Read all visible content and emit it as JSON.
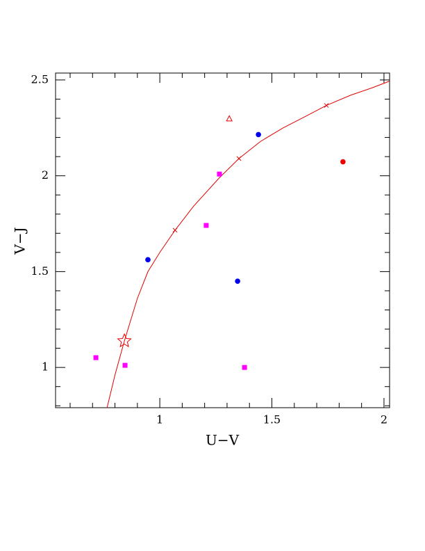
{
  "chart_data": {
    "type": "scatter",
    "x_label": "U−V",
    "y_label": "V−J",
    "xlim": [
      0.535,
      2.025
    ],
    "ylim": [
      0.79,
      2.536
    ],
    "xticks": [
      1,
      1.5,
      2
    ],
    "yticks": [
      1,
      1.5,
      2,
      2.5
    ],
    "xminorticks": [
      0.6,
      0.7,
      0.8,
      0.9,
      1.1,
      1.2,
      1.3,
      1.4,
      1.6,
      1.7,
      1.8,
      1.9
    ],
    "yminorticks": [
      0.8,
      0.9,
      1.1,
      1.2,
      1.3,
      1.4,
      1.6,
      1.7,
      1.8,
      1.9,
      2.1,
      2.2,
      2.3,
      2.4
    ],
    "series": [
      {
        "marker": "line",
        "color": "#e00000",
        "x": [
          0.765,
          0.8,
          0.842,
          0.9,
          0.947,
          1.0,
          1.068,
          1.15,
          1.266,
          1.353,
          1.45,
          1.55,
          1.65,
          1.743,
          1.85,
          1.95,
          2.025
        ],
        "values": [
          0.79,
          0.96,
          1.138,
          1.36,
          1.5,
          1.6,
          1.716,
          1.84,
          1.99,
          2.09,
          2.18,
          2.25,
          2.31,
          2.367,
          2.42,
          2.46,
          2.494
        ]
      },
      {
        "marker": "cross",
        "color": "#e00000",
        "x": [
          1.068,
          1.353,
          1.743
        ],
        "values": [
          1.716,
          2.09,
          2.367
        ]
      },
      {
        "marker": "square",
        "color": "#ff00ff",
        "x": [
          0.715,
          0.845,
          1.207,
          1.266,
          1.378
        ],
        "values": [
          1.051,
          1.011,
          1.741,
          2.009,
          1.0
        ]
      },
      {
        "marker": "circle",
        "color": "#0000ee",
        "x": [
          0.947,
          1.347,
          1.44
        ],
        "values": [
          1.562,
          1.45,
          2.215
        ]
      },
      {
        "marker": "circle",
        "color": "#ee0000",
        "x": [
          1.817
        ],
        "values": [
          2.073
        ]
      },
      {
        "marker": "triangle",
        "color": "#ee0000",
        "x": [
          1.31
        ],
        "values": [
          2.297
        ]
      },
      {
        "marker": "star",
        "color": "#ee0000",
        "x": [
          0.842
        ],
        "values": [
          1.138
        ]
      }
    ]
  }
}
